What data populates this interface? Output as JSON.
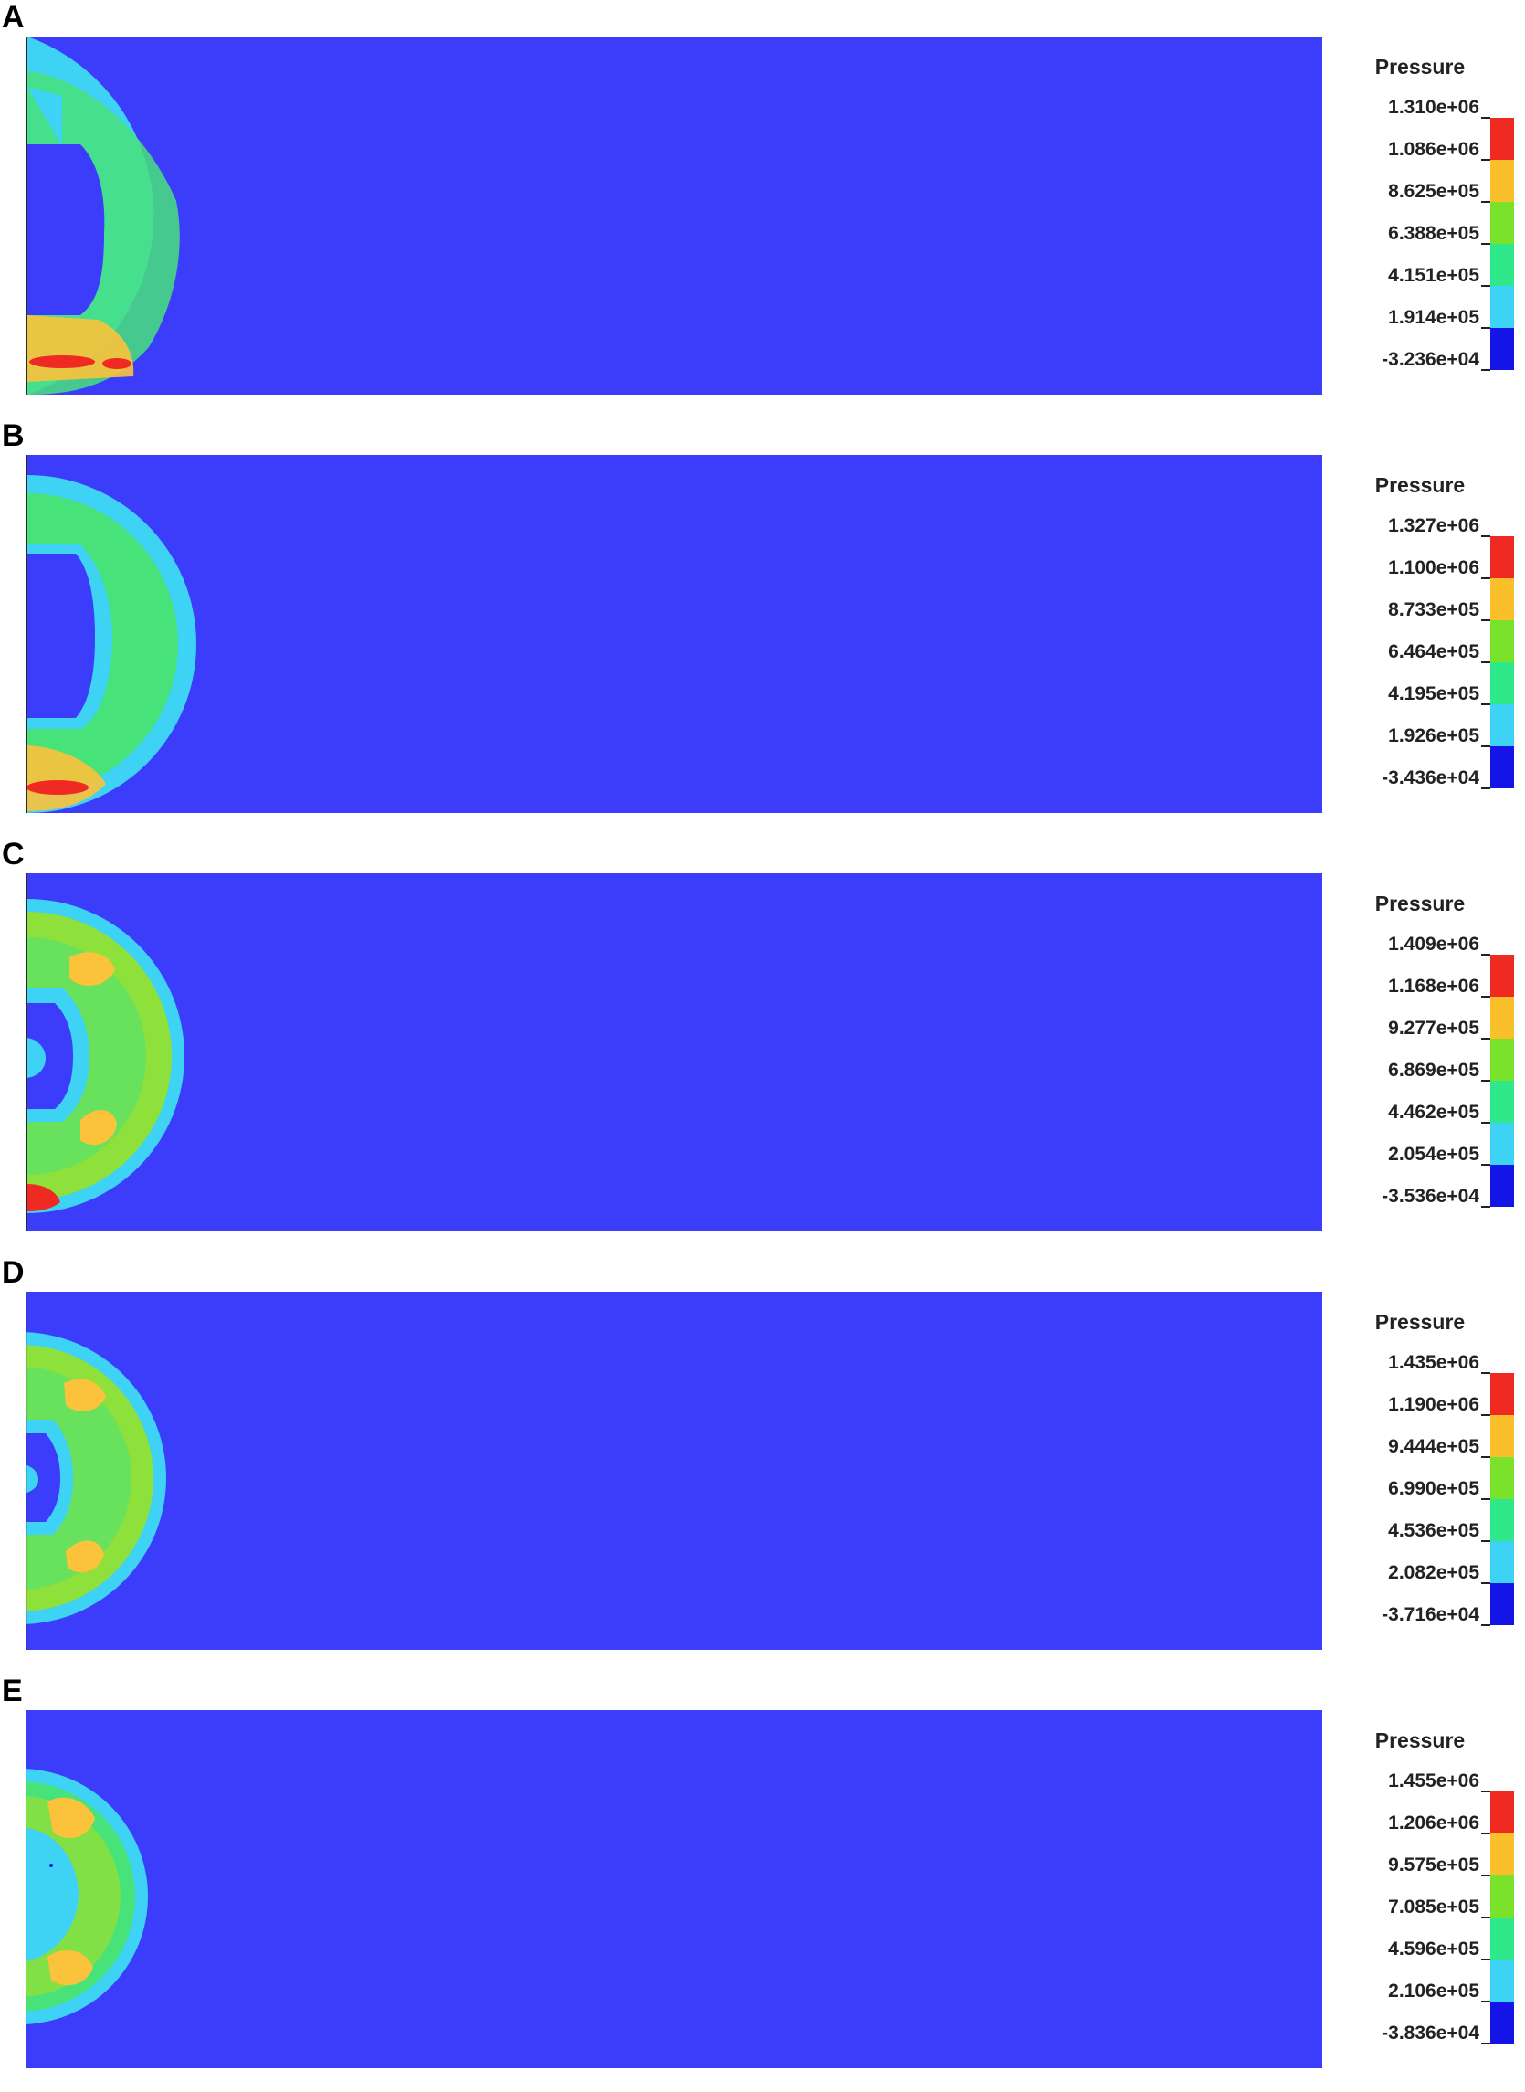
{
  "colors": {
    "background_field": "#3c3cfb",
    "level_colors": [
      "#1414e6",
      "#3ed2f5",
      "#2ee88a",
      "#7be22c",
      "#f9c02c",
      "#ef2a22"
    ],
    "blue_deep": "#1414e6",
    "cyan": "#3ed2f5",
    "green": "#48e27a",
    "green_yellow": "#8ee03a",
    "orange": "#fbc23c",
    "red": "#ee2a22"
  },
  "panels": [
    {
      "letter": "A",
      "legend_title": "Pressure",
      "ticks": [
        "1.310e+06",
        "1.086e+06",
        "8.625e+05",
        "6.388e+05",
        "4.151e+05",
        "1.914e+05",
        "-3.236e+04"
      ]
    },
    {
      "letter": "B",
      "legend_title": "Pressure",
      "ticks": [
        "1.327e+06",
        "1.100e+06",
        "8.733e+05",
        "6.464e+05",
        "4.195e+05",
        "1.926e+05",
        "-3.436e+04"
      ]
    },
    {
      "letter": "C",
      "legend_title": "Pressure",
      "ticks": [
        "1.409e+06",
        "1.168e+06",
        "9.277e+05",
        "6.869e+05",
        "4.462e+05",
        "2.054e+05",
        "-3.536e+04"
      ]
    },
    {
      "letter": "D",
      "legend_title": "Pressure",
      "ticks": [
        "1.435e+06",
        "1.190e+06",
        "9.444e+05",
        "6.990e+05",
        "4.536e+05",
        "2.082e+05",
        "-3.716e+04"
      ]
    },
    {
      "letter": "E",
      "legend_title": "Pressure",
      "ticks": [
        "1.455e+06",
        "1.206e+06",
        "9.575e+05",
        "7.085e+05",
        "4.596e+05",
        "2.106e+05",
        "-3.836e+04"
      ]
    }
  ]
}
